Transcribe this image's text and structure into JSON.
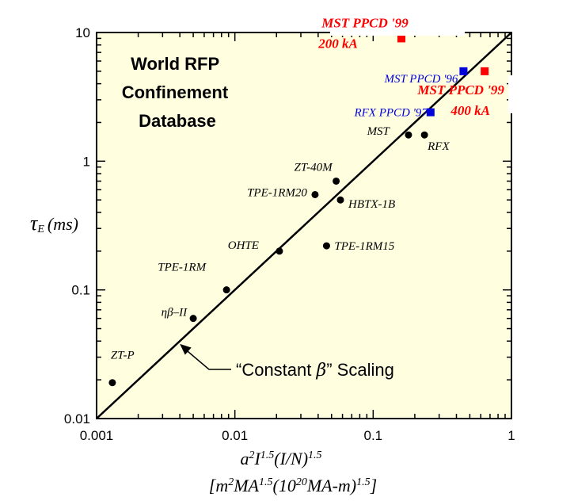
{
  "chart_data": {
    "type": "scatter",
    "title": "World RFP Confinement Database",
    "title_lines": [
      "World RFP",
      "Confinement",
      "Database"
    ],
    "x_scale": "log",
    "y_scale": "log",
    "xlim": [
      0.001,
      1
    ],
    "ylim": [
      0.01,
      10
    ],
    "x_ticks": [
      0.001,
      0.01,
      0.1,
      1
    ],
    "x_tick_labels": [
      "0.001",
      "0.01",
      "0.1",
      "1"
    ],
    "y_ticks": [
      0.01,
      0.1,
      1,
      10
    ],
    "y_tick_labels": [
      "0.01",
      "0.1",
      "1",
      "10"
    ],
    "xlabel": {
      "line1": {
        "a": "a",
        "sup_a": "2",
        "I": "I",
        "sup_I": "1.5",
        "rest": "(I/N)",
        "sup_rest": "1.5"
      },
      "line2": {
        "open": "[m",
        "sup_m": "2",
        "ma": "MA",
        "sup_ma": "1.5",
        "mid": "(10",
        "sup_20": "20",
        "tail": "MA-m)",
        "sup_tail": "1.5",
        "close": "]"
      }
    },
    "ylabel": {
      "tau": "τ",
      "sub": "E",
      "unit": "(ms)"
    },
    "background_color": "#ffffe0",
    "series": [
      {
        "marker": "circle",
        "color": "#000000",
        "points": [
          {
            "label": "ZT-P",
            "x": 0.0013,
            "y": 0.019
          },
          {
            "label": "ηβ–II",
            "x": 0.005,
            "y": 0.06
          },
          {
            "label": "TPE-1RM",
            "x": 0.0087,
            "y": 0.1
          },
          {
            "label": "OHTE",
            "x": 0.021,
            "y": 0.2
          },
          {
            "label": "TPE-1RM15",
            "x": 0.046,
            "y": 0.22
          },
          {
            "label": "TPE-1RM20",
            "x": 0.038,
            "y": 0.55
          },
          {
            "label": "ZT-40M",
            "x": 0.054,
            "y": 0.7
          },
          {
            "label": "HBTX-1B",
            "x": 0.058,
            "y": 0.5
          },
          {
            "label": "MST",
            "x": 0.18,
            "y": 1.6
          },
          {
            "label": "RFX",
            "x": 0.235,
            "y": 1.6
          }
        ]
      },
      {
        "marker": "square",
        "color": "#0000dd",
        "points": [
          {
            "label": "RFX PPCD '97",
            "x": 0.26,
            "y": 2.4
          },
          {
            "label": "MST PPCD '96",
            "x": 0.45,
            "y": 5.0
          }
        ]
      },
      {
        "marker": "square",
        "color": "#ff0000",
        "points": [
          {
            "label": "MST PPCD '99 200 kA",
            "label_lines": [
              "MST PPCD '99",
              "200 kA"
            ],
            "x": 0.16,
            "y": 9.0
          },
          {
            "label": "MST PPCD '99 400 kA",
            "label_lines": [
              "MST PPCD '99",
              "400 kA"
            ],
            "x": 0.64,
            "y": 5.0
          }
        ]
      }
    ],
    "scaling_line": {
      "x": [
        0.001,
        1
      ],
      "y": [
        0.01,
        10
      ],
      "annotation": {
        "pre": "“Constant ",
        "symbol": "β",
        "post": "” Scaling",
        "arrow_to": {
          "x": 0.004,
          "y": 0.038
        }
      }
    }
  }
}
